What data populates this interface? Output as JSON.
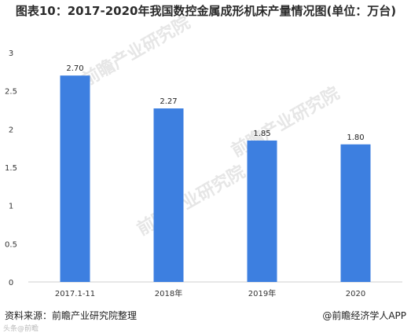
{
  "chart_data": {
    "type": "bar",
    "title": "图表10：2017-2020年我国数控金属成形机床产量情况图(单位：万台)",
    "categories": [
      "2017.1-11",
      "2018年",
      "2019年",
      "2020"
    ],
    "values": [
      2.7,
      2.27,
      1.85,
      1.8
    ],
    "value_labels": [
      "2.70",
      "2.27",
      "1.85",
      "1.80"
    ],
    "ylim": [
      0,
      3
    ],
    "yticks": [
      "0",
      "0.5",
      "1",
      "1.5",
      "2",
      "2.5",
      "3"
    ],
    "xlabel": "",
    "ylabel": "",
    "grid": false,
    "bar_color": "#3d7fe0"
  },
  "footer": {
    "source": "资料来源：前瞻产业研究院整理",
    "credit": "@前瞻经济学人APP"
  },
  "watermark": {
    "text": "前瞻产业研究院",
    "corner": "头条@前瞻"
  }
}
